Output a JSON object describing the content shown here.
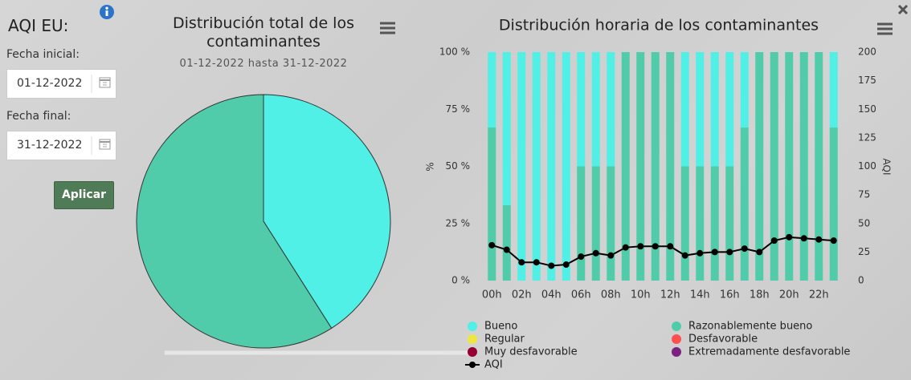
{
  "panel": {
    "title": "AQI EU:",
    "start_label": "Fecha inicial:",
    "start_date": "01-12-2022",
    "end_label": "Fecha final:",
    "end_date": "31-12-2022",
    "button": "Aplicar"
  },
  "chart_data": [
    {
      "type": "pie",
      "title": "Distribución total de los contaminantes",
      "subtitle": "01-12-2022 hasta 31-12-2022",
      "categories": [
        "Bueno",
        "Razonablemente bueno"
      ],
      "values": [
        41,
        59
      ],
      "colors": [
        "#50f0e6",
        "#50ccaa"
      ]
    },
    {
      "type": "bar",
      "title": "Distribución horaria de los contaminantes",
      "stacked": true,
      "grid": false,
      "y_label": "%",
      "y2_label": "AQI",
      "categories": [
        "00h",
        null,
        "02h",
        null,
        "04h",
        null,
        "06h",
        null,
        "08h",
        null,
        "10h",
        null,
        "12h",
        null,
        "14h",
        null,
        "16h",
        null,
        "18h",
        null,
        "20h",
        null,
        "22h",
        null
      ],
      "ylim": [
        0,
        100
      ],
      "yticks": [
        {
          "value": 0,
          "label": "0 %"
        },
        {
          "value": 25,
          "label": "25 %"
        },
        {
          "value": 50,
          "label": "50 %"
        },
        {
          "value": 75,
          "label": "75 %"
        },
        {
          "value": 100,
          "label": "100 %"
        }
      ],
      "y2lim": [
        0,
        200
      ],
      "y2ticks": [
        0,
        25,
        50,
        75,
        100,
        125,
        150,
        175,
        200
      ],
      "series": [
        {
          "name": "Bueno",
          "color": "#50f0e6",
          "values": [
            33,
            67,
            100,
            100,
            100,
            100,
            50,
            50,
            50,
            0,
            0,
            0,
            0,
            50,
            50,
            50,
            50,
            33,
            0,
            0,
            0,
            0,
            0,
            33
          ]
        },
        {
          "name": "Razonablemente bueno",
          "color": "#50ccaa",
          "values": [
            67,
            33,
            0,
            0,
            0,
            0,
            50,
            50,
            50,
            100,
            100,
            100,
            100,
            50,
            50,
            50,
            50,
            67,
            100,
            100,
            100,
            100,
            100,
            67
          ]
        },
        {
          "name": "Regular",
          "color": "#f0e641",
          "values": [
            0,
            0,
            0,
            0,
            0,
            0,
            0,
            0,
            0,
            0,
            0,
            0,
            0,
            0,
            0,
            0,
            0,
            0,
            0,
            0,
            0,
            0,
            0,
            0
          ]
        },
        {
          "name": "Desfavorable",
          "color": "#ff5050",
          "values": [
            0,
            0,
            0,
            0,
            0,
            0,
            0,
            0,
            0,
            0,
            0,
            0,
            0,
            0,
            0,
            0,
            0,
            0,
            0,
            0,
            0,
            0,
            0,
            0
          ]
        },
        {
          "name": "Muy desfavorable",
          "color": "#960032",
          "values": [
            0,
            0,
            0,
            0,
            0,
            0,
            0,
            0,
            0,
            0,
            0,
            0,
            0,
            0,
            0,
            0,
            0,
            0,
            0,
            0,
            0,
            0,
            0,
            0
          ]
        },
        {
          "name": "Extremadamente desfavorable",
          "color": "#7d2181",
          "values": [
            0,
            0,
            0,
            0,
            0,
            0,
            0,
            0,
            0,
            0,
            0,
            0,
            0,
            0,
            0,
            0,
            0,
            0,
            0,
            0,
            0,
            0,
            0,
            0
          ]
        },
        {
          "name": "AQI",
          "type": "line",
          "axis": "y2",
          "color": "#000000",
          "values": [
            31,
            27,
            16,
            16,
            13,
            14,
            21,
            24,
            22,
            29,
            30,
            30,
            30,
            22,
            24,
            25,
            25,
            28,
            25,
            35,
            38,
            37,
            36,
            35
          ]
        }
      ]
    }
  ]
}
